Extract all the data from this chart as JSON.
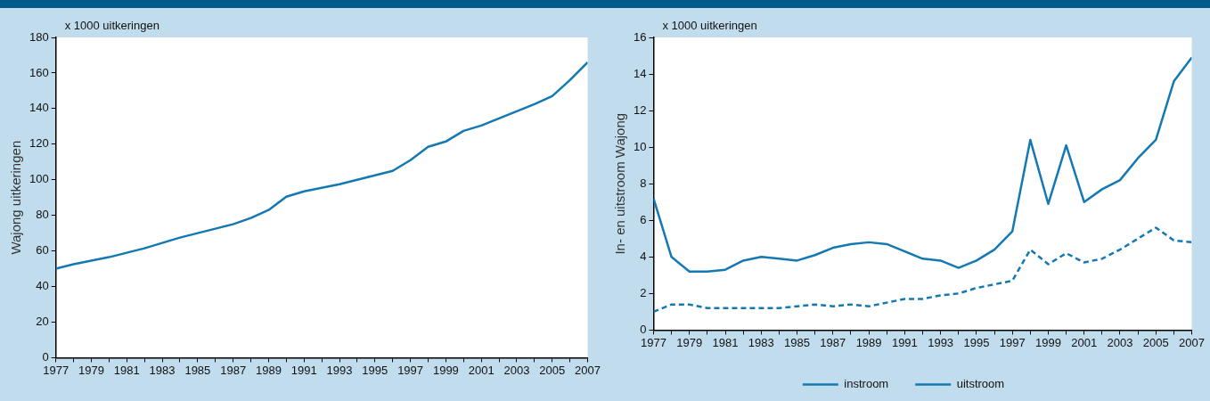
{
  "chart_data": [
    {
      "type": "line",
      "subtitle": "x 1000 uitkeringen",
      "ylabel": "Wajong uitkeringen",
      "x": [
        1977,
        1978,
        1979,
        1980,
        1981,
        1982,
        1983,
        1984,
        1985,
        1986,
        1987,
        1988,
        1989,
        1990,
        1991,
        1992,
        1993,
        1994,
        1995,
        1996,
        1997,
        1998,
        1999,
        2000,
        2001,
        2002,
        2003,
        2004,
        2005,
        2006,
        2007
      ],
      "xlim": [
        1977,
        2007
      ],
      "xticks": [
        1977,
        {
          "value": 1978,
          "label": null
        },
        1979,
        {
          "value": 1980,
          "label": null
        },
        1981,
        {
          "value": 1982,
          "label": null
        },
        1983,
        {
          "value": 1984,
          "label": null
        },
        1985,
        {
          "value": 1986,
          "label": null
        },
        1987,
        {
          "value": 1988,
          "label": null
        },
        1989,
        {
          "value": 1990,
          "label": null
        },
        1991,
        {
          "value": 1992,
          "label": null
        },
        1993,
        {
          "value": 1994,
          "label": null
        },
        1995,
        {
          "value": 1996,
          "label": null
        },
        1997,
        {
          "value": 1998,
          "label": null
        },
        1999,
        {
          "value": 2000,
          "label": null
        },
        2001,
        {
          "value": 2002,
          "label": null
        },
        2003,
        {
          "value": 2004,
          "label": null
        },
        2005,
        {
          "value": 2006,
          "label": null
        },
        2007
      ],
      "ylim": [
        0,
        180
      ],
      "yticks": [
        0,
        20,
        40,
        60,
        80,
        100,
        120,
        140,
        160,
        180
      ],
      "grid": false,
      "series": [
        {
          "color": "#1479b3",
          "line_style": "solid",
          "values": [
            50,
            52.5,
            54.5,
            56.5,
            59,
            61.5,
            64.5,
            67.5,
            70,
            72.5,
            75,
            78.5,
            83,
            90.5,
            93.5,
            95.5,
            97.5,
            100,
            102.5,
            105,
            111,
            118.5,
            121.5,
            127.5,
            130.5,
            134.5,
            138.5,
            142.5,
            147,
            156,
            166
          ]
        }
      ]
    },
    {
      "type": "line",
      "subtitle": "x 1000 uitkeringen",
      "ylabel": "In- en uitstroom Wajong",
      "x": [
        1977,
        1978,
        1979,
        1980,
        1981,
        1982,
        1983,
        1984,
        1985,
        1986,
        1987,
        1988,
        1989,
        1990,
        1991,
        1992,
        1993,
        1994,
        1995,
        1996,
        1997,
        1998,
        1999,
        2000,
        2001,
        2002,
        2003,
        2004,
        2005,
        2006,
        2007
      ],
      "xlim": [
        1977,
        2007
      ],
      "xticks": [
        1977,
        {
          "value": 1978,
          "label": null
        },
        1979,
        {
          "value": 1980,
          "label": null
        },
        1981,
        {
          "value": 1982,
          "label": null
        },
        1983,
        {
          "value": 1984,
          "label": null
        },
        1985,
        {
          "value": 1986,
          "label": null
        },
        1987,
        {
          "value": 1988,
          "label": null
        },
        1989,
        {
          "value": 1990,
          "label": null
        },
        1991,
        {
          "value": 1992,
          "label": null
        },
        1993,
        {
          "value": 1994,
          "label": null
        },
        1995,
        {
          "value": 1996,
          "label": null
        },
        1997,
        {
          "value": 1998,
          "label": null
        },
        1999,
        {
          "value": 2000,
          "label": null
        },
        2001,
        {
          "value": 2002,
          "label": null
        },
        2003,
        {
          "value": 2004,
          "label": null
        },
        2005,
        {
          "value": 2006,
          "label": null
        },
        2007
      ],
      "ylim": [
        0,
        16
      ],
      "yticks": [
        0,
        2,
        4,
        6,
        8,
        10,
        12,
        14,
        16
      ],
      "grid": false,
      "legend": "bottom",
      "series": [
        {
          "name": "instroom",
          "color": "#1479b3",
          "line_style": "solid",
          "values": [
            7.2,
            4.0,
            3.2,
            3.2,
            3.3,
            3.8,
            4.0,
            3.9,
            3.8,
            4.1,
            4.5,
            4.7,
            4.8,
            4.7,
            4.3,
            3.9,
            3.8,
            3.4,
            3.8,
            4.4,
            5.4,
            10.4,
            6.9,
            10.1,
            7.0,
            7.7,
            8.2,
            9.4,
            10.4,
            13.6,
            14.9
          ]
        },
        {
          "name": "uitstroom",
          "color": "#1479b3",
          "line_style": "dashed",
          "values": [
            1.0,
            1.4,
            1.4,
            1.2,
            1.2,
            1.2,
            1.2,
            1.2,
            1.3,
            1.4,
            1.3,
            1.4,
            1.3,
            1.5,
            1.7,
            1.7,
            1.9,
            2.0,
            2.3,
            2.5,
            2.7,
            4.4,
            3.6,
            4.2,
            3.7,
            3.9,
            4.4,
            5.0,
            5.6,
            4.9,
            4.8
          ]
        }
      ]
    }
  ]
}
